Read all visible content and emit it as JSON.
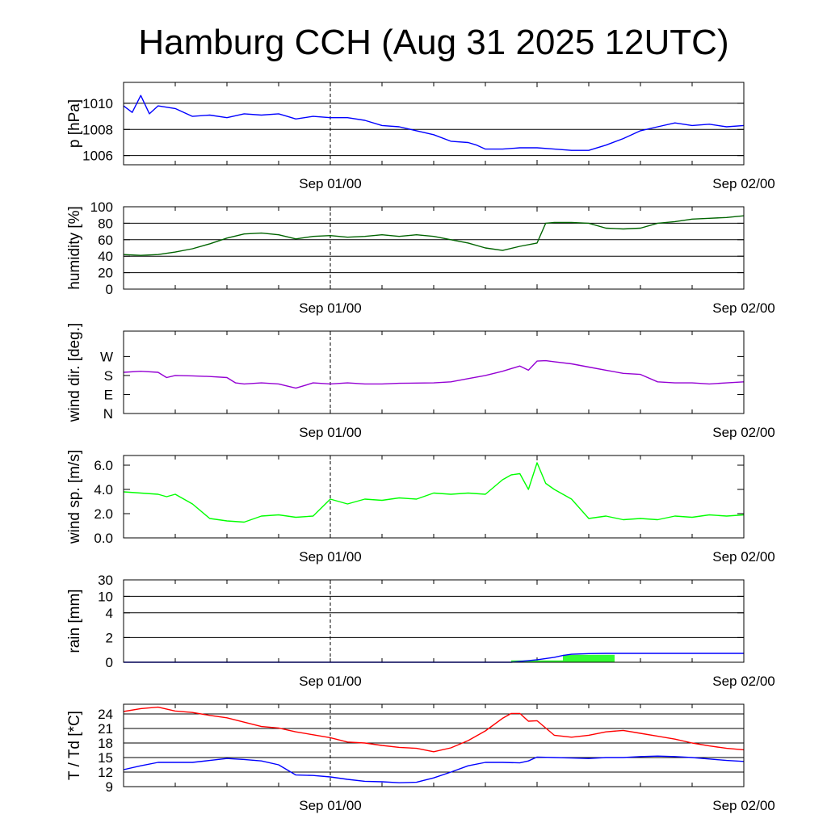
{
  "title": "Hamburg CCH (Aug 31 2025 12UTC)",
  "chart_data": [
    {
      "type": "line",
      "id": "pressure",
      "ylabel": "p [hPa]",
      "ylim": [
        1005.3,
        1011.6
      ],
      "yticks": [
        1006,
        1008,
        1010
      ],
      "ytick_labels": [
        "1006",
        "1008",
        "1010"
      ],
      "grid": true,
      "x_labels": [
        "Sep 01/00",
        "Sep 02/00"
      ],
      "series": [
        {
          "color": "#0000ff",
          "x": [
            0,
            0.5,
            1,
            1.5,
            2,
            3,
            4,
            5,
            6,
            7,
            8,
            9,
            9.5,
            10,
            11,
            12,
            13,
            14,
            15,
            16,
            17,
            18,
            19,
            20,
            20.5,
            21,
            22,
            23,
            24,
            25,
            26,
            27,
            28,
            29,
            30,
            31,
            32,
            33,
            34,
            35,
            36
          ],
          "y": [
            1009.8,
            1009.3,
            1010.6,
            1009.2,
            1009.8,
            1009.6,
            1009.0,
            1009.1,
            1008.9,
            1009.2,
            1009.1,
            1009.2,
            1009.0,
            1008.8,
            1009.0,
            1008.9,
            1008.9,
            1008.7,
            1008.3,
            1008.2,
            1007.9,
            1007.6,
            1007.1,
            1007.0,
            1006.8,
            1006.5,
            1006.5,
            1006.6,
            1006.6,
            1006.5,
            1006.4,
            1006.4,
            1006.8,
            1007.3,
            1007.9,
            1008.2,
            1008.5,
            1008.3,
            1008.4,
            1008.2,
            1008.3
          ]
        }
      ]
    },
    {
      "type": "line",
      "id": "humidity",
      "ylabel": "humidity [%]",
      "ylim": [
        0,
        100
      ],
      "yticks": [
        0,
        20,
        40,
        60,
        80,
        100
      ],
      "ytick_labels": [
        "0",
        "20",
        "40",
        "60",
        "80",
        "100"
      ],
      "grid": true,
      "x_labels": [
        "Sep 01/00",
        "Sep 02/00"
      ],
      "series": [
        {
          "color": "#006400",
          "x": [
            0,
            1,
            2,
            3,
            4,
            5,
            6,
            7,
            8,
            9,
            10,
            11,
            12,
            13,
            14,
            15,
            16,
            17,
            18,
            19,
            20,
            21,
            22,
            23,
            24,
            24.5,
            25,
            26,
            27,
            28,
            29,
            30,
            31,
            32,
            33,
            34,
            35,
            36
          ],
          "y": [
            42,
            41,
            42,
            45,
            49,
            55,
            62,
            67,
            68,
            66,
            61,
            64,
            65,
            63,
            64,
            66,
            64,
            66,
            64,
            60,
            56,
            50,
            47,
            52,
            56,
            80,
            81,
            81,
            80,
            74,
            73,
            74,
            80,
            82,
            85,
            86,
            87,
            89
          ]
        }
      ]
    },
    {
      "type": "line",
      "id": "wind-direction",
      "ylabel": "wind dir. [deg.]",
      "ylim": [
        0,
        390
      ],
      "yticks": [
        0,
        90,
        180,
        270
      ],
      "ytick_labels": [
        "N",
        "E",
        "S",
        "W"
      ],
      "grid": false,
      "x_labels": [
        "Sep 01/00",
        "Sep 02/00"
      ],
      "series": [
        {
          "color": "#9400d3",
          "x": [
            0,
            1,
            2,
            2.5,
            3,
            4,
            5,
            6,
            6.5,
            7,
            8,
            9,
            10,
            11,
            12,
            13,
            14,
            15,
            16,
            17,
            18,
            19,
            20,
            21,
            22,
            23,
            23.5,
            24,
            24.5,
            25,
            26,
            27,
            28,
            29,
            30,
            31,
            32,
            33,
            34,
            35,
            36
          ],
          "y": [
            195,
            200,
            195,
            170,
            180,
            178,
            175,
            170,
            145,
            140,
            145,
            140,
            120,
            145,
            140,
            145,
            140,
            140,
            143,
            144,
            145,
            150,
            165,
            180,
            200,
            225,
            205,
            248,
            250,
            245,
            235,
            220,
            205,
            190,
            185,
            150,
            145,
            145,
            140,
            145,
            150
          ]
        }
      ]
    },
    {
      "type": "line",
      "id": "wind-speed",
      "ylabel": "wind sp. [m/s]",
      "ylim": [
        0,
        6.8
      ],
      "yticks": [
        0,
        2,
        4,
        6
      ],
      "ytick_labels": [
        "0.0",
        "2.0",
        "4.0",
        "6.0"
      ],
      "grid": false,
      "x_labels": [
        "Sep 01/00",
        "Sep 02/00"
      ],
      "series": [
        {
          "color": "#00ff00",
          "x": [
            0,
            1,
            2,
            2.5,
            3,
            4,
            5,
            6,
            7,
            8,
            9,
            10,
            11,
            12,
            13,
            14,
            15,
            16,
            17,
            18,
            19,
            20,
            21,
            22,
            22.5,
            23,
            23.5,
            24,
            24.5,
            25,
            26,
            27,
            28,
            29,
            30,
            31,
            32,
            33,
            34,
            35,
            36
          ],
          "y": [
            3.8,
            3.7,
            3.6,
            3.4,
            3.6,
            2.8,
            1.6,
            1.4,
            1.3,
            1.8,
            1.9,
            1.7,
            1.8,
            3.2,
            2.8,
            3.2,
            3.1,
            3.3,
            3.2,
            3.7,
            3.6,
            3.7,
            3.6,
            4.8,
            5.2,
            5.3,
            4.0,
            6.2,
            4.5,
            4.0,
            3.2,
            1.6,
            1.8,
            1.5,
            1.6,
            1.5,
            1.8,
            1.7,
            1.9,
            1.8,
            1.9
          ]
        }
      ]
    },
    {
      "type": "bar",
      "id": "rain",
      "ylabel": "rain [mm]",
      "ylim": [
        0,
        30
      ],
      "yticks": [
        0,
        2,
        4,
        10,
        30
      ],
      "ytick_labels": [
        "0",
        "2",
        "4",
        "10",
        "30"
      ],
      "grid": true,
      "x_labels": [
        "Sep 01/00",
        "Sep 02/00"
      ],
      "bars": {
        "color": "#33ff33",
        "x": [
          [
            22.5,
            25.5
          ],
          [
            25.5,
            28.5
          ]
        ],
        "values": [
          0.15,
          0.6
        ]
      },
      "series": [
        {
          "color": "#0000ff",
          "x": [
            0,
            22.5,
            24,
            25,
            25.5,
            26,
            27,
            28,
            29,
            30,
            31,
            32,
            33,
            34,
            35,
            36
          ],
          "y": [
            0,
            0,
            0.2,
            0.4,
            0.55,
            0.65,
            0.7,
            0.72,
            0.72,
            0.72,
            0.72,
            0.72,
            0.72,
            0.72,
            0.72,
            0.72
          ]
        }
      ]
    },
    {
      "type": "line",
      "id": "temperature",
      "ylabel": "T / Td [*C]",
      "ylim": [
        9,
        26
      ],
      "yticks": [
        9,
        12,
        15,
        18,
        21,
        24
      ],
      "ytick_labels": [
        "9",
        "12",
        "15",
        "18",
        "21",
        "24"
      ],
      "grid": true,
      "x_labels": [
        "Sep 01/00",
        "Sep 02/00"
      ],
      "series": [
        {
          "color": "#ff0000",
          "x": [
            0,
            1,
            2,
            3,
            4,
            5,
            6,
            7,
            8,
            9,
            10,
            11,
            12,
            13,
            14,
            15,
            16,
            17,
            18,
            19,
            20,
            21,
            22,
            22.5,
            23,
            23.5,
            24,
            25,
            26,
            27,
            28,
            29,
            30,
            31,
            32,
            33,
            34,
            35,
            36
          ],
          "y": [
            24.5,
            25.1,
            25.4,
            24.6,
            24.3,
            23.7,
            23.2,
            22.3,
            21.4,
            21.1,
            20.3,
            19.7,
            19.1,
            18.2,
            18.0,
            17.5,
            17.1,
            16.9,
            16.2,
            17.0,
            18.5,
            20.5,
            23.1,
            24.1,
            24.1,
            22.5,
            22.6,
            19.6,
            19.2,
            19.6,
            20.3,
            20.6,
            20.0,
            19.4,
            18.8,
            18.0,
            17.4,
            16.9,
            16.6
          ]
        },
        {
          "color": "#0000ff",
          "x": [
            0,
            1,
            2,
            3,
            4,
            5,
            6,
            7,
            8,
            9,
            10,
            11,
            12,
            13,
            14,
            15,
            16,
            17,
            18,
            19,
            20,
            21,
            22,
            23,
            23.5,
            24,
            25,
            26,
            27,
            28,
            29,
            30,
            31,
            32,
            33,
            34,
            35,
            36
          ],
          "y": [
            12.5,
            13.3,
            14.0,
            14.0,
            14.0,
            14.4,
            14.8,
            14.6,
            14.3,
            13.5,
            11.4,
            11.3,
            11.0,
            10.5,
            10.1,
            10.0,
            9.8,
            9.9,
            10.8,
            12.0,
            13.3,
            14.0,
            14.0,
            13.9,
            14.3,
            15.1,
            15.0,
            14.9,
            14.8,
            15.0,
            15.0,
            15.2,
            15.3,
            15.2,
            15.0,
            14.7,
            14.4,
            14.2
          ]
        }
      ]
    }
  ]
}
